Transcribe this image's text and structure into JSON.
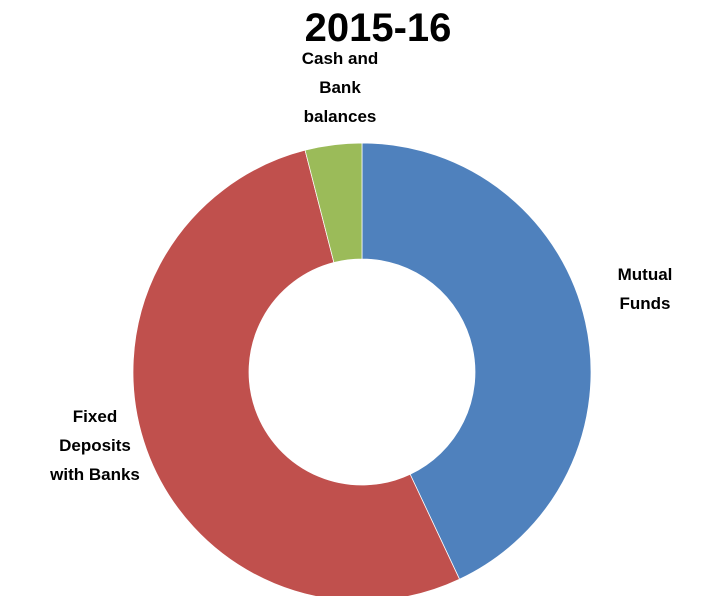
{
  "chart_data": {
    "type": "donut",
    "title": "2015-16",
    "categories": [
      "Mutual Funds",
      "Fixed Deposits with Banks",
      "Cash and Bank balances"
    ],
    "values": [
      43,
      53,
      4
    ],
    "colors": [
      "#4f81bd",
      "#c0504d",
      "#9bbb59"
    ]
  }
}
